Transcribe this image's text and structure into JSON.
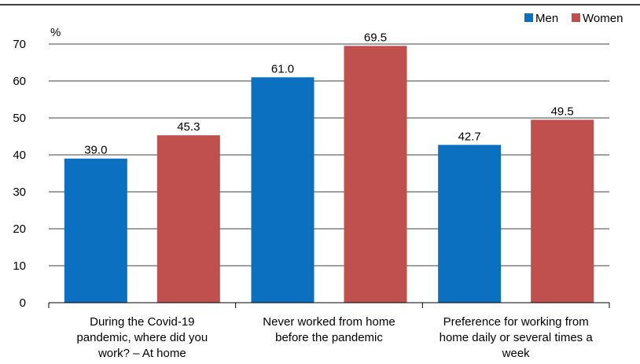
{
  "chart_data": {
    "type": "bar",
    "unit_label": "%",
    "categories": [
      [
        "During the Covid-19",
        "pandemic, where did you",
        "work? – At home"
      ],
      [
        "Never worked from home",
        "before the pandemic"
      ],
      [
        "Preference for working from",
        "home daily or  several times a",
        "week"
      ]
    ],
    "series": [
      {
        "name": "Men",
        "color": "#0a70bf",
        "values": [
          39.0,
          61.0,
          42.7
        ],
        "labels": [
          "39.0",
          "61.0",
          "42.7"
        ]
      },
      {
        "name": "Women",
        "color": "#c0504d",
        "values": [
          45.3,
          69.5,
          49.5
        ],
        "labels": [
          "45.3",
          "69.5",
          "49.5"
        ]
      }
    ],
    "ylim": [
      0,
      70
    ],
    "yticks": [
      "0",
      "10",
      "20",
      "30",
      "40",
      "50",
      "60",
      "70"
    ],
    "grid": true,
    "legend_position": "top-right"
  }
}
